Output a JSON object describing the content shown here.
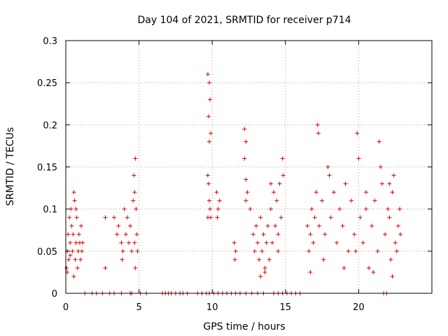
{
  "chart_data": {
    "type": "scatter",
    "title": "Day 104 of 2021, SRMTID for receiver p714",
    "xlabel": "GPS time / hours",
    "ylabel": "SRMTID / TECUs",
    "xlim": [
      0,
      25
    ],
    "ylim": [
      0,
      0.3
    ],
    "xticks": [
      0,
      5,
      10,
      15,
      20
    ],
    "xtick_labels": [
      "0",
      "5",
      "10",
      "15",
      "20"
    ],
    "yticks": [
      0,
      0.05,
      0.1,
      0.15,
      0.2,
      0.25,
      0.3
    ],
    "ytick_labels": [
      "0",
      "0.05",
      "0.1",
      "0.15",
      "0.2",
      "0.25",
      "0.3"
    ],
    "grid": true,
    "marker": "plus",
    "series": [
      {
        "name": "SRMTID",
        "color": "#dd0000",
        "points": [
          [
            0.05,
            0.03
          ],
          [
            0.1,
            0.05
          ],
          [
            0.15,
            0.07
          ],
          [
            0.2,
            0.04
          ],
          [
            0.25,
            0.09
          ],
          [
            0.3,
            0.06
          ],
          [
            0.35,
            0.1
          ],
          [
            0.4,
            0.08
          ],
          [
            0.45,
            0.05
          ],
          [
            0.5,
            0.07
          ],
          [
            0.55,
            0.12
          ],
          [
            0.6,
            0.11
          ],
          [
            0.65,
            0.04
          ],
          [
            0.7,
            0.06
          ],
          [
            0.75,
            0.09
          ],
          [
            0.8,
            0.03
          ],
          [
            0.85,
            0.05
          ],
          [
            0.9,
            0.07
          ],
          [
            0.95,
            0.06
          ],
          [
            1.0,
            0.04
          ],
          [
            1.05,
            0.08
          ],
          [
            1.1,
            0.05
          ],
          [
            1.15,
            0.06
          ],
          [
            0.1,
            0.025
          ],
          [
            0.3,
            0.045
          ],
          [
            0.55,
            0.02
          ],
          [
            0.7,
            0.1
          ],
          [
            2.7,
            0.09
          ],
          [
            2.7,
            0.03
          ],
          [
            3.3,
            0.09
          ],
          [
            3.5,
            0.07
          ],
          [
            3.6,
            0.08
          ],
          [
            3.8,
            0.06
          ],
          [
            3.9,
            0.05
          ],
          [
            4.0,
            0.1
          ],
          [
            4.1,
            0.07
          ],
          [
            4.2,
            0.09
          ],
          [
            4.3,
            0.06
          ],
          [
            4.4,
            0.08
          ],
          [
            4.5,
            0.05
          ],
          [
            3.85,
            0.04
          ],
          [
            4.6,
            0.11
          ],
          [
            4.65,
            0.14
          ],
          [
            4.7,
            0.12
          ],
          [
            4.75,
            0.16
          ],
          [
            4.8,
            0.1
          ],
          [
            4.85,
            0.07
          ],
          [
            4.9,
            0.05
          ],
          [
            4.75,
            0.03
          ],
          [
            4.7,
            0.06
          ],
          [
            9.7,
            0.26
          ],
          [
            9.8,
            0.25
          ],
          [
            9.85,
            0.23
          ],
          [
            9.75,
            0.21
          ],
          [
            9.9,
            0.19
          ],
          [
            9.8,
            0.18
          ],
          [
            9.7,
            0.14
          ],
          [
            9.75,
            0.13
          ],
          [
            9.8,
            0.11
          ],
          [
            9.85,
            0.1
          ],
          [
            9.9,
            0.09
          ],
          [
            9.7,
            0.09
          ],
          [
            10.3,
            0.12
          ],
          [
            10.4,
            0.1
          ],
          [
            10.5,
            0.11
          ],
          [
            10.35,
            0.09
          ],
          [
            11.5,
            0.06
          ],
          [
            11.6,
            0.05
          ],
          [
            11.55,
            0.04
          ],
          [
            12.2,
            0.195
          ],
          [
            12.3,
            0.18
          ],
          [
            12.2,
            0.16
          ],
          [
            12.3,
            0.135
          ],
          [
            12.4,
            0.12
          ],
          [
            12.3,
            0.11
          ],
          [
            12.6,
            0.1
          ],
          [
            12.8,
            0.07
          ],
          [
            12.9,
            0.05
          ],
          [
            13.0,
            0.08
          ],
          [
            13.1,
            0.06
          ],
          [
            13.2,
            0.04
          ],
          [
            13.3,
            0.09
          ],
          [
            13.4,
            0.05
          ],
          [
            13.5,
            0.07
          ],
          [
            13.6,
            0.03
          ],
          [
            13.7,
            0.06
          ],
          [
            13.8,
            0.08
          ],
          [
            13.9,
            0.04
          ],
          [
            14.0,
            0.1
          ],
          [
            14.1,
            0.06
          ],
          [
            14.2,
            0.12
          ],
          [
            14.3,
            0.08
          ],
          [
            14.4,
            0.11
          ],
          [
            14.5,
            0.07
          ],
          [
            14.6,
            0.13
          ],
          [
            14.7,
            0.09
          ],
          [
            14.8,
            0.16
          ],
          [
            14.85,
            0.14
          ],
          [
            13.3,
            0.02
          ],
          [
            13.6,
            0.025
          ],
          [
            14.5,
            0.05
          ],
          [
            14.0,
            0.13
          ],
          [
            16.5,
            0.08
          ],
          [
            16.6,
            0.05
          ],
          [
            16.7,
            0.07
          ],
          [
            16.8,
            0.1
          ],
          [
            16.9,
            0.06
          ],
          [
            17.0,
            0.09
          ],
          [
            17.1,
            0.12
          ],
          [
            17.2,
            0.2
          ],
          [
            17.25,
            0.19
          ],
          [
            17.3,
            0.08
          ],
          [
            17.5,
            0.11
          ],
          [
            17.7,
            0.07
          ],
          [
            17.9,
            0.15
          ],
          [
            18.1,
            0.09
          ],
          [
            18.3,
            0.12
          ],
          [
            18.5,
            0.06
          ],
          [
            18.7,
            0.1
          ],
          [
            18.9,
            0.08
          ],
          [
            19.1,
            0.13
          ],
          [
            19.3,
            0.05
          ],
          [
            19.5,
            0.11
          ],
          [
            19.7,
            0.07
          ],
          [
            19.9,
            0.19
          ],
          [
            20.0,
            0.16
          ],
          [
            20.1,
            0.09
          ],
          [
            20.3,
            0.06
          ],
          [
            20.5,
            0.1
          ],
          [
            20.7,
            0.03
          ],
          [
            20.9,
            0.08
          ],
          [
            21.1,
            0.11
          ],
          [
            21.3,
            0.05
          ],
          [
            21.4,
            0.18
          ],
          [
            21.5,
            0.15
          ],
          [
            21.6,
            0.13
          ],
          [
            21.8,
            0.07
          ],
          [
            22.0,
            0.1
          ],
          [
            22.1,
            0.09
          ],
          [
            22.2,
            0.04
          ],
          [
            22.3,
            0.12
          ],
          [
            22.4,
            0.14
          ],
          [
            22.5,
            0.06
          ],
          [
            22.6,
            0.05
          ],
          [
            22.7,
            0.08
          ],
          [
            22.8,
            0.1
          ],
          [
            22.85,
            0.07
          ],
          [
            16.7,
            0.025
          ],
          [
            19.0,
            0.03
          ],
          [
            21.0,
            0.025
          ],
          [
            22.3,
            0.02
          ],
          [
            18.0,
            0.14
          ],
          [
            20.5,
            0.12
          ],
          [
            17.6,
            0.04
          ],
          [
            19.8,
            0.05
          ],
          [
            22.1,
            0.13
          ],
          [
            1.3,
            0
          ],
          [
            1.8,
            0
          ],
          [
            2.1,
            0
          ],
          [
            2.5,
            0
          ],
          [
            3.0,
            0
          ],
          [
            3.3,
            0
          ],
          [
            3.8,
            0
          ],
          [
            4.4,
            0
          ],
          [
            4.5,
            0
          ],
          [
            5.1,
            0
          ],
          [
            5.5,
            0
          ],
          [
            6.6,
            0
          ],
          [
            6.8,
            0
          ],
          [
            7.0,
            0
          ],
          [
            7.2,
            0
          ],
          [
            7.5,
            0
          ],
          [
            7.8,
            0
          ],
          [
            8.0,
            0
          ],
          [
            8.3,
            0
          ],
          [
            9.0,
            0
          ],
          [
            9.3,
            0
          ],
          [
            9.6,
            0
          ],
          [
            9.8,
            0
          ],
          [
            10.1,
            0
          ],
          [
            10.4,
            0
          ],
          [
            10.7,
            0
          ],
          [
            11.0,
            0
          ],
          [
            11.3,
            0
          ],
          [
            11.6,
            0
          ],
          [
            11.9,
            0
          ],
          [
            12.3,
            0
          ],
          [
            12.7,
            0
          ],
          [
            13.1,
            0
          ],
          [
            13.5,
            0
          ],
          [
            14.2,
            0
          ],
          [
            14.5,
            0
          ],
          [
            14.8,
            0
          ],
          [
            15.1,
            0
          ],
          [
            15.4,
            0
          ],
          [
            15.7,
            0
          ],
          [
            16.0,
            0
          ],
          [
            21.7,
            0
          ],
          [
            21.9,
            0
          ]
        ]
      }
    ]
  }
}
